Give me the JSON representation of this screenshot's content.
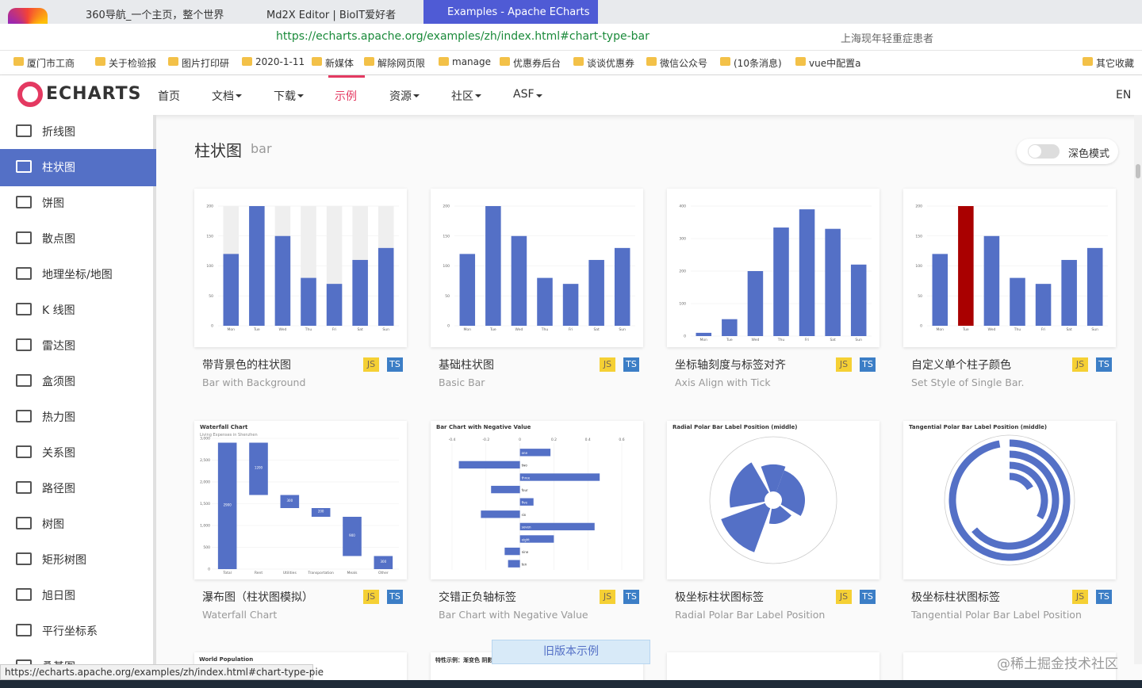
{
  "browser": {
    "tabs": [
      "360导航_一个主页，整个世界",
      "Md2X Editor | BioIT爱好者",
      "Examples - Apache ECharts"
    ],
    "active_tab": 2,
    "address": "https://echarts.apache.org/examples/zh/index.html#chart-type-bar",
    "search": "上海现年轻重症患者",
    "bookmarks": [
      "厦门市工商",
      "关于检验报",
      "图片打印研",
      "2020-1-11",
      "新媒体",
      "解除网页限",
      "manage",
      "优惠券后台",
      "谈谈优惠券",
      "微信公众号",
      "(10条消息)",
      "vue中配置a"
    ],
    "other_bookmarks": "其它收藏"
  },
  "nav": {
    "logo": "ECHARTS",
    "items": [
      "首页",
      "文档",
      "下载",
      "示例",
      "资源",
      "社区",
      "ASF"
    ],
    "active": 3,
    "lang": "EN"
  },
  "sidebar": {
    "items": [
      "折线图",
      "柱状图",
      "饼图",
      "散点图",
      "地理坐标/地图",
      "K 线图",
      "雷达图",
      "盒须图",
      "热力图",
      "关系图",
      "路径图",
      "树图",
      "矩形树图",
      "旭日图",
      "平行坐标系",
      "桑基图"
    ],
    "active": 1
  },
  "section": {
    "title": "柱状图",
    "subtitle": "bar",
    "dark_mode": "深色模式"
  },
  "badges": [
    "JS",
    "TS"
  ],
  "cards": [
    {
      "title": "带背景色的柱状图",
      "subtitle": "Bar with Background",
      "thumb": {
        "type": "bar",
        "background": true,
        "color": "#5470c6",
        "categories": [
          "Mon",
          "Tue",
          "Wed",
          "Thu",
          "Fri",
          "Sat",
          "Sun"
        ],
        "values": [
          120,
          200,
          150,
          80,
          70,
          110,
          130
        ],
        "ylim": [
          0,
          200
        ],
        "yticks": [
          0,
          50,
          100,
          150,
          200
        ]
      }
    },
    {
      "title": "基础柱状图",
      "subtitle": "Basic Bar",
      "thumb": {
        "type": "bar",
        "background": false,
        "color": "#5470c6",
        "categories": [
          "Mon",
          "Tue",
          "Wed",
          "Thu",
          "Fri",
          "Sat",
          "Sun"
        ],
        "values": [
          120,
          200,
          150,
          80,
          70,
          110,
          130
        ],
        "ylim": [
          0,
          200
        ],
        "yticks": [
          0,
          50,
          100,
          150,
          200
        ]
      }
    },
    {
      "title": "坐标轴刻度与标签对齐",
      "subtitle": "Axis Align with Tick",
      "thumb": {
        "type": "bar",
        "background": false,
        "color": "#5470c6",
        "categories": [
          "Mon",
          "Tue",
          "Wed",
          "Thu",
          "Fri",
          "Sat",
          "Sun"
        ],
        "values": [
          10,
          52,
          200,
          334,
          390,
          330,
          220
        ],
        "ylim": [
          0,
          400
        ],
        "yticks": [
          0,
          100,
          200,
          300,
          400
        ]
      }
    },
    {
      "title": "自定义单个柱子颜色",
      "subtitle": "Set Style of Single Bar.",
      "thumb": {
        "type": "bar",
        "background": false,
        "color": "#5470c6",
        "highlight": 1,
        "highlight_color": "#a90000",
        "categories": [
          "Mon",
          "Tue",
          "Wed",
          "Thu",
          "Fri",
          "Sat",
          "Sun"
        ],
        "values": [
          120,
          200,
          150,
          80,
          70,
          110,
          130
        ],
        "ylim": [
          0,
          200
        ],
        "yticks": [
          0,
          50,
          100,
          150,
          200
        ]
      }
    },
    {
      "title": "瀑布图（柱状图模拟）",
      "subtitle": "Waterfall Chart",
      "thumb": {
        "type": "waterfall",
        "title": "Waterfall Chart",
        "subtitle": "Living Expenses in Shenzhen",
        "color": "#5470c6",
        "categories": [
          "Total",
          "Rent",
          "Utilities",
          "Transportation",
          "Meals",
          "Other"
        ],
        "values": [
          2900,
          1200,
          300,
          200,
          900,
          300
        ],
        "ylim": [
          0,
          3000
        ],
        "yticks": [
          0,
          500,
          {
            "value": 1000,
            "label": "1,000"
          },
          {
            "value": 1500,
            "label": "1,500"
          },
          {
            "value": 2000,
            "label": "2,000"
          },
          {
            "value": 2500,
            "label": "2,500"
          },
          {
            "value": 3000,
            "label": "3,000"
          }
        ]
      }
    },
    {
      "title": "交错正负轴标签",
      "subtitle": "Bar Chart with Negative Value",
      "thumb": {
        "type": "negative",
        "title": "Bar Chart with Negative Value",
        "color": "#5470c6",
        "categories": [
          "one",
          "two",
          "three",
          "four",
          "five",
          "six",
          "seven",
          "eight",
          "nine",
          "ten"
        ],
        "values": [
          0.18,
          -0.36,
          0.47,
          -0.17,
          0.08,
          -0.23,
          0.44,
          0.2,
          -0.09,
          -0.07
        ],
        "xlim": [
          -0.4,
          0.6
        ],
        "xticks": [
          -0.4,
          -0.2,
          0,
          0.2,
          0.4,
          0.6
        ]
      }
    },
    {
      "title": "极坐标柱状图标签",
      "subtitle": "Radial Polar Bar Label Position",
      "thumb": {
        "type": "polar",
        "title": "Radial Polar Bar Label Position (middle)",
        "color": "#5470c6"
      }
    },
    {
      "title": "极坐标柱状图标签",
      "subtitle": "Tangential Polar Bar Label Position",
      "thumb": {
        "type": "tangential",
        "title": "Tangential Polar Bar Label Position (middle)",
        "color": "#5470c6"
      }
    }
  ],
  "more_cards": [
    "World Population",
    "特性示例：渐变色 阴影 点击缩放"
  ],
  "old_version": "旧版本示例",
  "status_url": "https://echarts.apache.org/examples/zh/index.html#chart-type-pie",
  "watermark": "@稀土掘金技术社区"
}
